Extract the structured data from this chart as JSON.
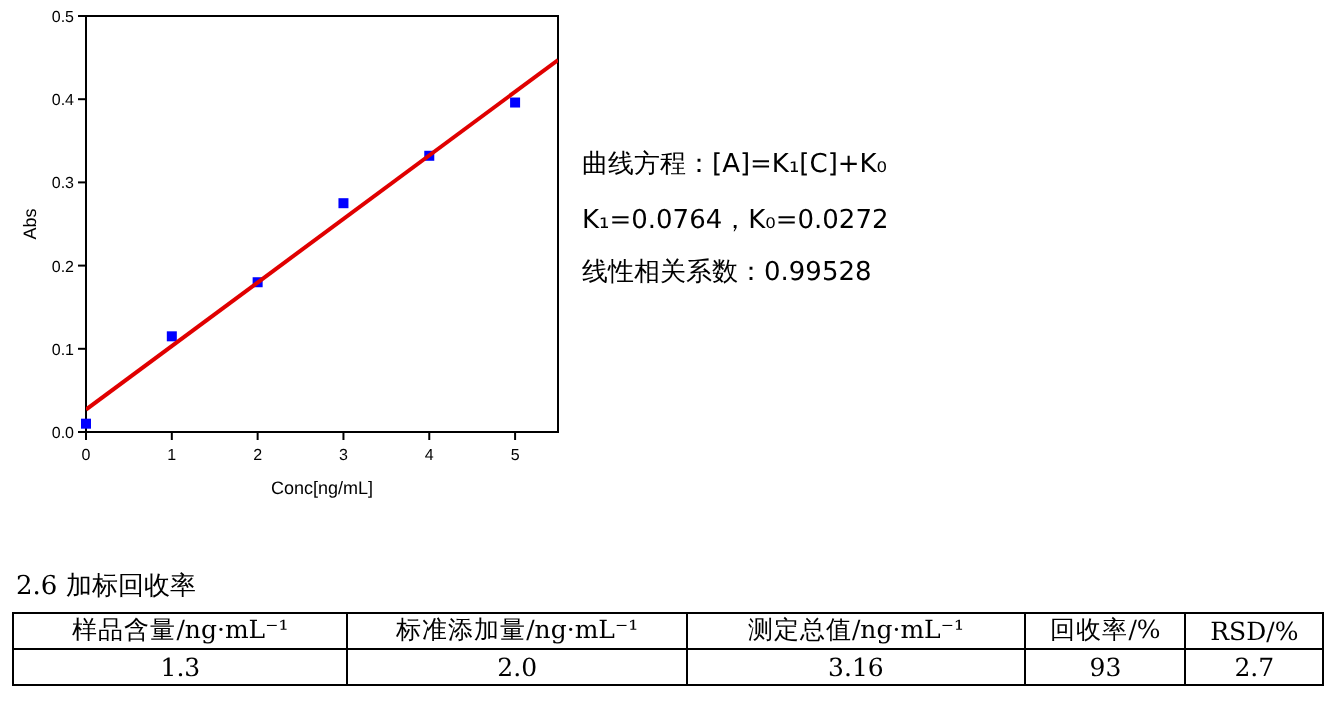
{
  "chart_data": {
    "type": "scatter",
    "xlabel": "Conc[ng/mL]",
    "ylabel": "Abs",
    "xlim": [
      0,
      5.5
    ],
    "ylim": [
      0,
      0.5
    ],
    "xticks": [
      0,
      1,
      2,
      3,
      4,
      5
    ],
    "yticks": [
      {
        "value": 0,
        "label": "0.0"
      },
      0.1,
      0.2,
      0.3,
      0.4,
      0.5
    ],
    "series": [
      {
        "marker": "square",
        "color": "#0000ff",
        "x": [
          0,
          1,
          2,
          3,
          4,
          5
        ],
        "values": [
          0.01,
          0.115,
          0.18,
          0.275,
          0.332,
          0.396
        ]
      },
      {
        "type": "line",
        "marker": "none",
        "color": "#e00000",
        "x": [
          0,
          5.5
        ],
        "values": [
          0.027,
          0.447
        ]
      }
    ],
    "annotations": [
      "曲线方程：[A]=K₁[C]+K₀",
      "K₁=0.0764，K₀=0.0272",
      "线性相关系数：0.99528",
      "2.6 加标回收率",
      "样品含量/ng·mL⁻¹",
      "标准添加量/ng·mL⁻¹",
      "测定总值/ng·mL⁻¹",
      "回收率/%",
      "RSD/%",
      "1.3",
      "2.0",
      "3.16",
      "93",
      "2.7"
    ]
  }
}
